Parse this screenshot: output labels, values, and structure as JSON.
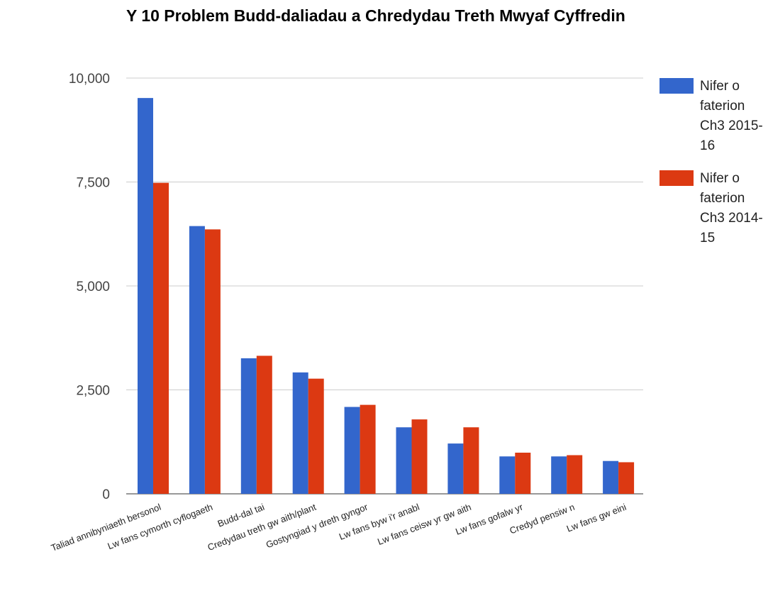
{
  "chart_data": {
    "type": "bar",
    "title": "Y 10 Problem Budd-daliadau a Chredydau Treth Mwyaf Cyffredin",
    "categories": [
      "Taliad annibyniaeth bersonol",
      "Lw fans cymorth cyflogaeth",
      "Budd-dal tai",
      "Credydau treth gw aith/plant",
      "Gostyngiad y dreth gyngor",
      "Lw fans byw i'r anabl",
      "Lw fans ceisw yr gw aith",
      "Lw fans gofalw yr",
      "Credyd pensiw n",
      "Lw fans gw eini"
    ],
    "series": [
      {
        "name": "Nifer o faterion Ch3 2015-16",
        "color": "#3366cc",
        "values": [
          9520,
          6440,
          3260,
          2920,
          2090,
          1600,
          1210,
          900,
          900,
          790
        ]
      },
      {
        "name": "Nifer o faterion Ch3 2014-15",
        "color": "#dc3912",
        "values": [
          7480,
          6360,
          3320,
          2770,
          2140,
          1790,
          1600,
          990,
          930,
          760
        ]
      }
    ],
    "yticks": [
      "0",
      "2,500",
      "5,000",
      "7,500",
      "10,000"
    ],
    "ylim": [
      0,
      10000
    ],
    "grid": true,
    "legend_position": "right"
  }
}
